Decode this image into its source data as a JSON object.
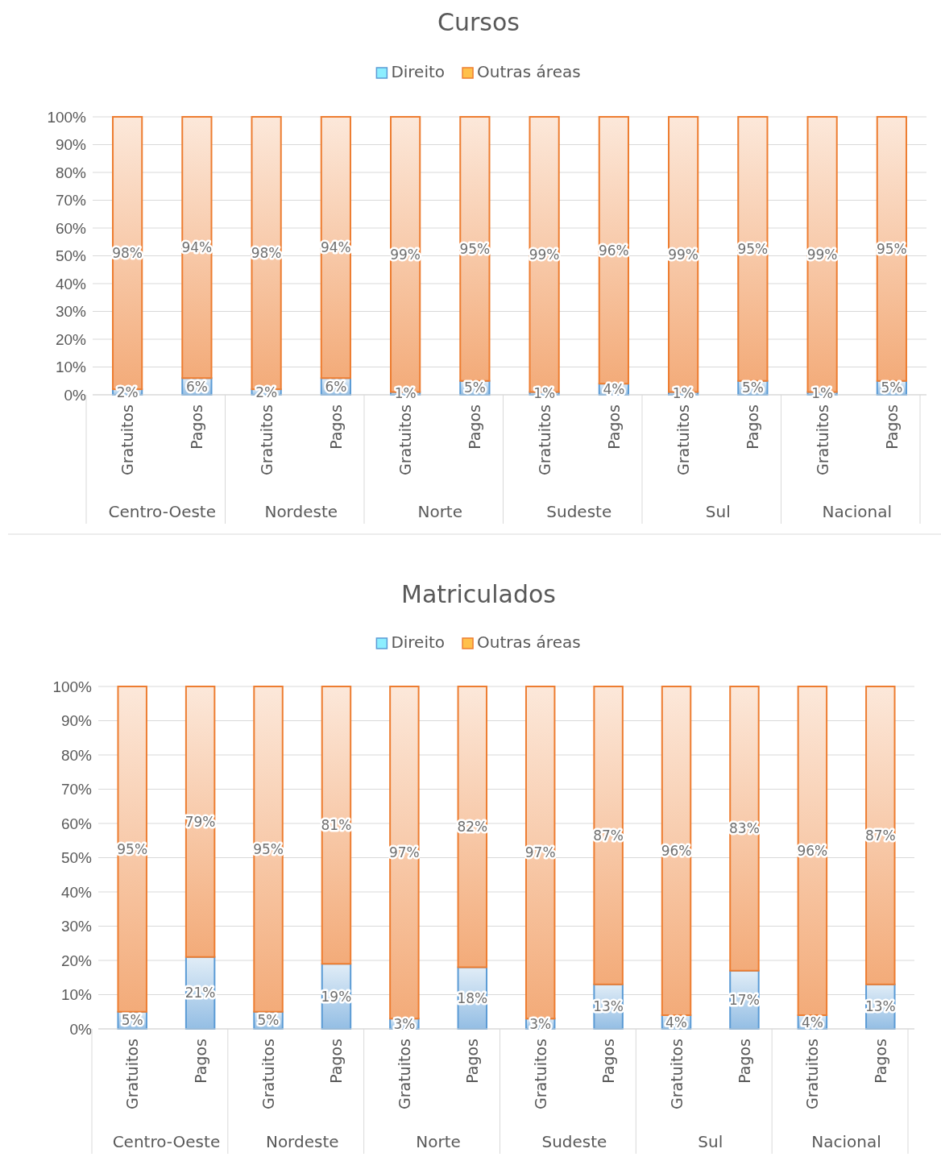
{
  "chart_data": [
    {
      "type": "bar",
      "title": "Cursos",
      "stacked": true,
      "legend": "top",
      "grid": "y",
      "categories": [
        "Gratuitos",
        "Pagos",
        "Gratuitos",
        "Pagos",
        "Gratuitos",
        "Pagos",
        "Gratuitos",
        "Pagos",
        "Gratuitos",
        "Pagos",
        "Gratuitos",
        "Pagos"
      ],
      "annotations": [
        "Centro-Oeste",
        "Nordeste",
        "Norte",
        "Sudeste",
        "Sul",
        "Nacional"
      ],
      "ylim": [
        0,
        100
      ],
      "yticks": [
        {
          "value": 0,
          "label": "0%"
        },
        {
          "value": 10,
          "label": "10%"
        },
        {
          "value": 20,
          "label": "20%"
        },
        {
          "value": 30,
          "label": "30%"
        },
        {
          "value": 40,
          "label": "40%"
        },
        {
          "value": 50,
          "label": "50%"
        },
        {
          "value": 60,
          "label": "60%"
        },
        {
          "value": 70,
          "label": "70%"
        },
        {
          "value": 80,
          "label": "80%"
        },
        {
          "value": 90,
          "label": "90%"
        },
        {
          "value": 100,
          "label": "100%"
        }
      ],
      "series": [
        {
          "name": "Direito",
          "color": "#5b9bd5",
          "values": [
            2,
            6,
            2,
            6,
            1,
            5,
            1,
            4,
            1,
            5,
            1,
            5
          ],
          "value_labels": [
            "2%",
            "6%",
            "2%",
            "6%",
            "1%",
            "5%",
            "1%",
            "4%",
            "1%",
            "5%",
            "1%",
            "5%"
          ]
        },
        {
          "name": "Outras áreas",
          "color": "#ed7d31",
          "values": [
            98,
            94,
            98,
            94,
            99,
            95,
            99,
            96,
            99,
            95,
            99,
            95
          ],
          "value_labels": [
            "98%",
            "94%",
            "98%",
            "94%",
            "99%",
            "95%",
            "99%",
            "96%",
            "99%",
            "95%",
            "99%",
            "95%"
          ]
        }
      ]
    },
    {
      "type": "bar",
      "title": "Matriculados",
      "stacked": true,
      "legend": "top",
      "grid": "y",
      "categories": [
        "Gratuitos",
        "Pagos",
        "Gratuitos",
        "Pagos",
        "Gratuitos",
        "Pagos",
        "Gratuitos",
        "Pagos",
        "Gratuitos",
        "Pagos",
        "Gratuitos",
        "Pagos"
      ],
      "annotations": [
        "Centro-Oeste",
        "Nordeste",
        "Norte",
        "Sudeste",
        "Sul",
        "Nacional"
      ],
      "ylim": [
        0,
        100
      ],
      "yticks": [
        {
          "value": 0,
          "label": "0%"
        },
        {
          "value": 10,
          "label": "10%"
        },
        {
          "value": 20,
          "label": "20%"
        },
        {
          "value": 30,
          "label": "30%"
        },
        {
          "value": 40,
          "label": "40%"
        },
        {
          "value": 50,
          "label": "50%"
        },
        {
          "value": 60,
          "label": "60%"
        },
        {
          "value": 70,
          "label": "70%"
        },
        {
          "value": 80,
          "label": "80%"
        },
        {
          "value": 90,
          "label": "90%"
        },
        {
          "value": 100,
          "label": "100%"
        }
      ],
      "series": [
        {
          "name": "Direito",
          "color": "#5b9bd5",
          "values": [
            5,
            21,
            5,
            19,
            3,
            18,
            3,
            13,
            4,
            17,
            4,
            13
          ],
          "value_labels": [
            "5%",
            "21%",
            "5%",
            "19%",
            "3%",
            "18%",
            "3%",
            "13%",
            "4%",
            "17%",
            "4%",
            "13%"
          ]
        },
        {
          "name": "Outras áreas",
          "color": "#ed7d31",
          "values": [
            95,
            79,
            95,
            81,
            97,
            82,
            97,
            87,
            96,
            83,
            96,
            87
          ],
          "value_labels": [
            "95%",
            "79%",
            "95%",
            "81%",
            "97%",
            "82%",
            "97%",
            "87%",
            "96%",
            "83%",
            "96%",
            "87%"
          ]
        }
      ]
    }
  ]
}
